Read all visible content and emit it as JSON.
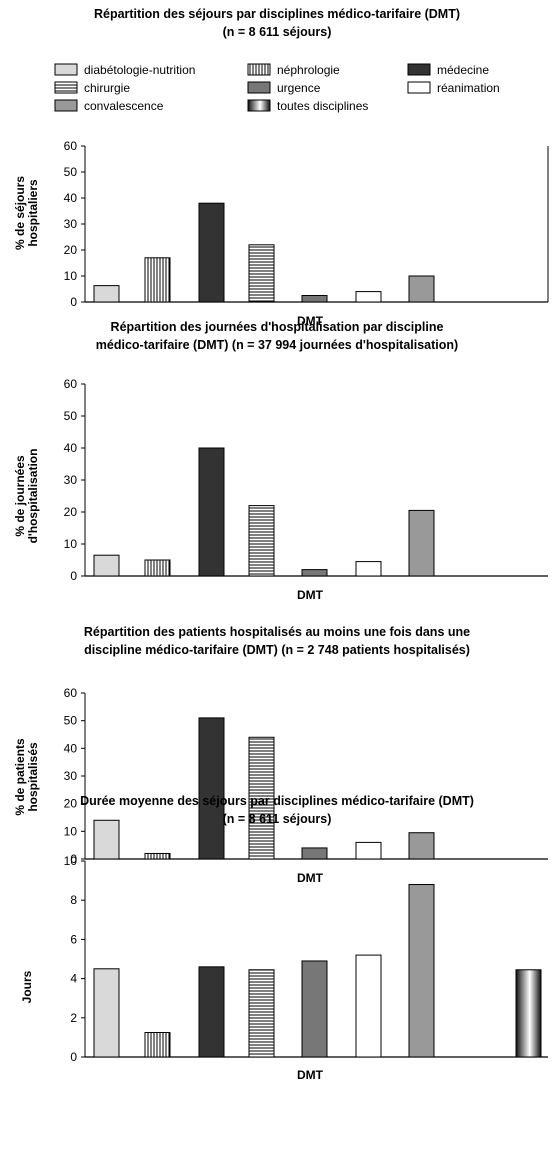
{
  "legend": {
    "items": [
      {
        "label": "diabétologie-nutrition",
        "fill": "#d9d9d9",
        "pattern": "solid"
      },
      {
        "label": "néphrologie",
        "fill": "#ffffff",
        "pattern": "vstripes"
      },
      {
        "label": "médecine",
        "fill": "#333333",
        "pattern": "solid"
      },
      {
        "label": "chirurgie",
        "fill": "#ffffff",
        "pattern": "hstripes"
      },
      {
        "label": "urgence",
        "fill": "#777777",
        "pattern": "solid"
      },
      {
        "label": "réanimation",
        "fill": "#ffffff",
        "pattern": "solid"
      },
      {
        "label": "convalescence",
        "fill": "#999999",
        "pattern": "solid"
      },
      {
        "label": "toutes disciplines",
        "fill": "#555555",
        "pattern": "gradient"
      }
    ]
  },
  "chart_data": [
    {
      "type": "bar",
      "title": "Répartition des séjours par disciplines médico-tarifaire (DMT)",
      "subtitle": "(n = 8 611 séjours)",
      "xlabel": "DMT",
      "ylabel": "% de séjours hospitaliers",
      "ylim": [
        0,
        60
      ],
      "yticks": [
        0,
        10,
        20,
        30,
        40,
        50,
        60
      ],
      "grid": false,
      "categories": [
        "diabétologie-nutrition",
        "néphrologie",
        "médecine",
        "chirurgie",
        "urgence",
        "réanimation",
        "convalescence",
        "toutes disciplines"
      ],
      "values": [
        6.3,
        17,
        38,
        22,
        2.5,
        4,
        10,
        null
      ]
    },
    {
      "type": "bar",
      "title": "Répartition des journées d'hospitalisation par discipline",
      "subtitle": "médico-tarifaire (DMT) (n = 37 994 journées d'hospitalisation)",
      "xlabel": "DMT",
      "ylabel": "% de journées d'hospitalisation",
      "ylim": [
        0,
        60
      ],
      "yticks": [
        0,
        10,
        20,
        30,
        40,
        50,
        60
      ],
      "grid": false,
      "categories": [
        "diabétologie-nutrition",
        "néphrologie",
        "médecine",
        "chirurgie",
        "urgence",
        "réanimation",
        "convalescence",
        "toutes disciplines"
      ],
      "values": [
        6.5,
        5,
        40,
        22,
        2,
        4.5,
        20.5,
        null
      ]
    },
    {
      "type": "bar",
      "title": "Répartition des patients hospitalisés au moins une fois dans une",
      "subtitle": "discipline médico-tarifaire (DMT) (n = 2 748 patients hospitalisés)",
      "xlabel": "DMT",
      "ylabel": "% de patients hospitalisés",
      "ylim": [
        0,
        60
      ],
      "yticks": [
        0,
        10,
        20,
        30,
        40,
        50,
        60
      ],
      "grid": false,
      "categories": [
        "diabétologie-nutrition",
        "néphrologie",
        "médecine",
        "chirurgie",
        "urgence",
        "réanimation",
        "convalescence",
        "toutes disciplines"
      ],
      "values": [
        14,
        2,
        51,
        44,
        4,
        6,
        9.5,
        null
      ]
    },
    {
      "type": "bar",
      "title": "Durée moyenne des séjours par disciplines médico-tarifaire (DMT)",
      "subtitle": "(n = 8 611 séjours)",
      "xlabel": "DMT",
      "ylabel": "Jours",
      "ylim": [
        0,
        10
      ],
      "yticks": [
        0,
        2,
        4,
        6,
        8,
        10
      ],
      "grid": false,
      "categories": [
        "diabétologie-nutrition",
        "néphrologie",
        "médecine",
        "chirurgie",
        "urgence",
        "réanimation",
        "convalescence",
        "toutes disciplines"
      ],
      "values": [
        4.5,
        1.25,
        4.6,
        4.45,
        4.9,
        5.2,
        8.8,
        4.45
      ]
    }
  ]
}
